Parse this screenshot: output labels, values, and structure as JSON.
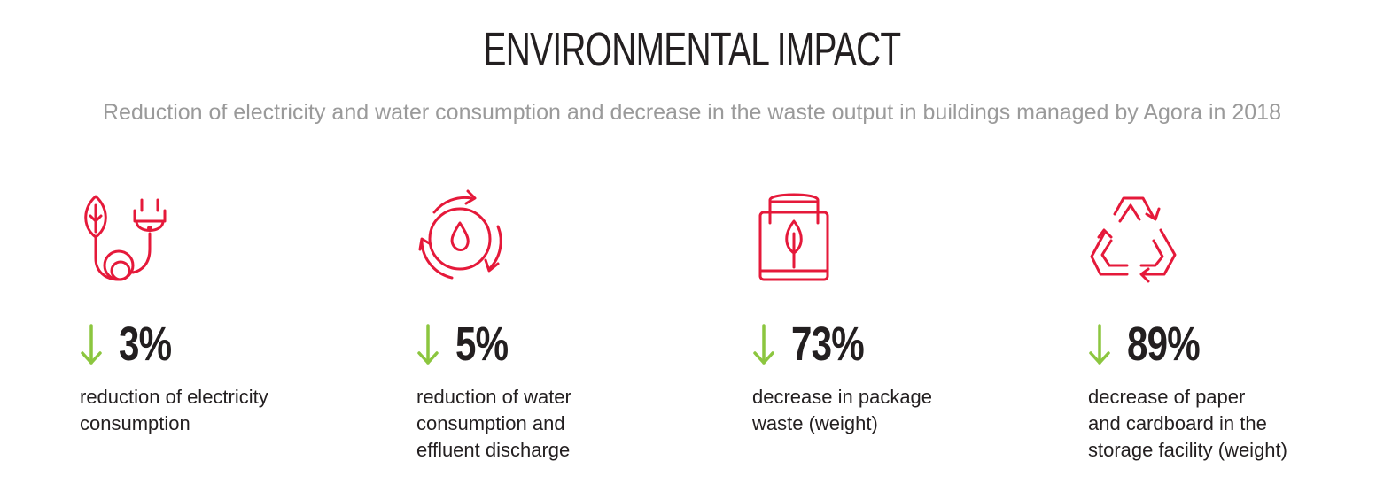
{
  "header": {
    "title": "ENVIRONMENTAL IMPACT",
    "subtitle": "Reduction of electricity and water consumption and decrease in the waste output in buildings managed by Agora in 2018"
  },
  "colors": {
    "icon_red": "#e5193a",
    "arrow_green": "#8cc63f",
    "text_dark": "#231f20",
    "subtitle_gray": "#9a9a9a"
  },
  "stats": [
    {
      "icon": "leaf-plug-icon",
      "direction": "down-arrow-icon",
      "value": "3%",
      "description": "reduction of electricity\nconsumption"
    },
    {
      "icon": "water-drop-cycle-icon",
      "direction": "down-arrow-icon",
      "value": "5%",
      "description": "reduction of water\nconsumption and\neffluent discharge"
    },
    {
      "icon": "eco-bag-icon",
      "direction": "down-arrow-icon",
      "value": "73%",
      "description": "decrease in package\nwaste (weight)"
    },
    {
      "icon": "recycle-icon",
      "direction": "down-arrow-icon",
      "value": "89%",
      "description": "decrease of paper\nand cardboard in the\nstorage facility (weight)"
    }
  ]
}
